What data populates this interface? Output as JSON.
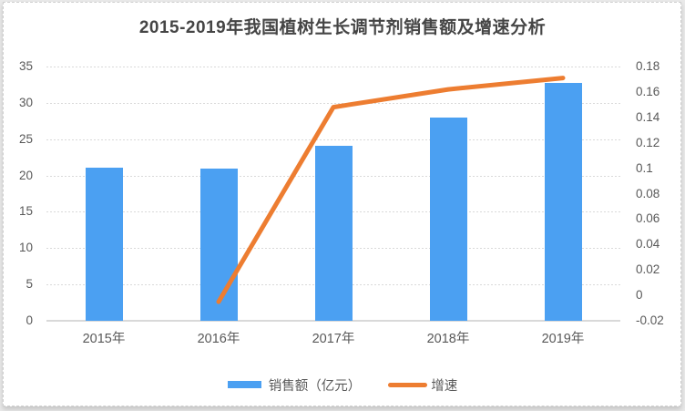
{
  "chart_data": {
    "type": "bar+line",
    "title": "2015-2019年我国植树生长调节剂销售额及增速分析",
    "categories": [
      "2015年",
      "2016年",
      "2017年",
      "2018年",
      "2019年"
    ],
    "series": [
      {
        "name": "销售额（亿元）",
        "type": "bar",
        "axis": "left",
        "color": "#4BA0F2",
        "values": [
          21.1,
          21,
          24.1,
          28,
          32.8
        ]
      },
      {
        "name": "增速",
        "type": "line",
        "axis": "right",
        "color": "#ED7D31",
        "values": [
          null,
          -0.005,
          0.148,
          0.162,
          0.171
        ]
      }
    ],
    "left_axis": {
      "min": 0,
      "max": 35,
      "tick_labels": [
        "35",
        "30",
        "25",
        "20",
        "15",
        "10",
        "5",
        "0"
      ]
    },
    "right_axis": {
      "min": -0.02,
      "max": 0.18,
      "tick_labels": [
        "0.18",
        "0.16",
        "0.14",
        "0.12",
        "0.1",
        "0.08",
        "0.06",
        "0.04",
        "0.02",
        "0",
        "-0.02"
      ]
    },
    "grid": true,
    "legend_position": "bottom",
    "legend": [
      "销售额（亿元）",
      "增速"
    ]
  },
  "style": {
    "bar_color": "#4BA0F2",
    "line_color": "#ED7D31",
    "grid_color": "#d9d9d9",
    "axis_text_color": "#595959",
    "title_color": "#454545",
    "card_background": "#ffffff",
    "page_background": "#e9e9e9"
  }
}
